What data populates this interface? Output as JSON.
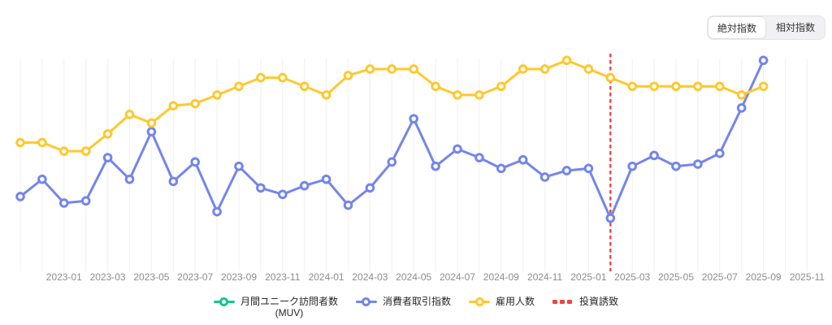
{
  "controls": {
    "toggle": {
      "options": [
        {
          "label": "絶対指数",
          "selected": true
        },
        {
          "label": "相対指数",
          "selected": false
        }
      ]
    }
  },
  "chart_data": {
    "type": "line",
    "x": [
      "2022-11",
      "2022-12",
      "2023-01",
      "2023-02",
      "2023-03",
      "2023-04",
      "2023-05",
      "2023-06",
      "2023-07",
      "2023-08",
      "2023-09",
      "2023-10",
      "2023-11",
      "2023-12",
      "2024-01",
      "2024-02",
      "2024-03",
      "2024-04",
      "2024-05",
      "2024-06",
      "2024-07",
      "2024-08",
      "2024-09",
      "2024-10",
      "2024-11",
      "2024-12",
      "2025-01",
      "2025-02",
      "2025-03",
      "2025-04",
      "2025-05",
      "2025-06",
      "2025-07",
      "2025-08",
      "2025-09"
    ],
    "x_tick_labels": [
      "2023-01",
      "2023-03",
      "2023-05",
      "2023-07",
      "2023-09",
      "2023-11",
      "2024-01",
      "2024-03",
      "2024-05",
      "2024-07",
      "2024-09",
      "2024-11",
      "2025-01",
      "2025-03",
      "2025-05",
      "2025-07",
      "2025-09",
      "2025-11"
    ],
    "series": [
      {
        "id": "muv",
        "name": "月間ユニーク訪問者数",
        "name_sub": "(MUV)",
        "color": "#12c78f",
        "marker": "ring",
        "values": []
      },
      {
        "id": "consumer-transaction-index",
        "name": "消費者取引指数",
        "color": "#7385ec",
        "marker": "ring",
        "values": [
          35,
          43,
          32,
          33,
          53,
          43,
          65,
          42,
          51,
          28,
          49,
          39,
          36,
          40,
          43,
          31,
          39,
          51,
          71,
          49,
          57,
          53,
          48,
          52,
          44,
          47,
          48,
          25,
          49,
          54,
          49,
          50,
          55,
          76,
          98
        ]
      },
      {
        "id": "employment-count",
        "name": "雇用人数",
        "color": "#ffc82e",
        "marker": "ring",
        "values": [
          60,
          60,
          56,
          56,
          64,
          73,
          69,
          77,
          78,
          82,
          86,
          90,
          90,
          86,
          82,
          91,
          94,
          94,
          94,
          86,
          82,
          82,
          86,
          94,
          94,
          98,
          94,
          90,
          86,
          86,
          86,
          86,
          86,
          82,
          86
        ]
      }
    ],
    "annotations": [
      {
        "id": "investment-attraction",
        "name": "投資誘致",
        "type": "vline",
        "x": "2025-02",
        "color": "#ef4343",
        "style": "dashed"
      }
    ],
    "ylim": [
      0,
      105
    ],
    "y_axis_visible": false,
    "grid": "vertical-monthly",
    "grid_color": "#f2f2f4",
    "axis_label_color": "#8c8c8c",
    "legend_position": "bottom"
  }
}
